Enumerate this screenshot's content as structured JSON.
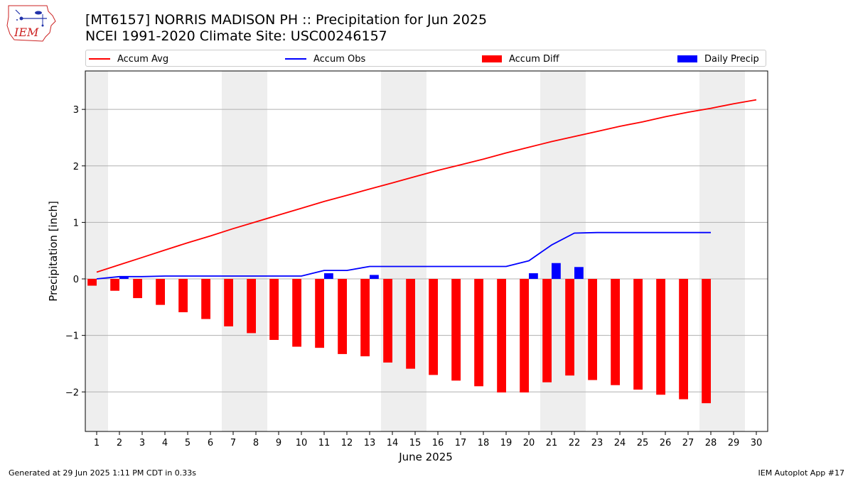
{
  "header": {
    "title": "[MT6157] NORRIS MADISON PH :: Precipitation for Jun 2025",
    "subtitle": "NCEI 1991-2020 Climate Site: USC00246157",
    "logo_text": "IEM"
  },
  "legend": {
    "position": "top",
    "items": [
      {
        "label": "Accum Avg",
        "type": "line",
        "color": "#ff0000"
      },
      {
        "label": "Accum Obs",
        "type": "line",
        "color": "#0000ff"
      },
      {
        "label": "Accum Diff",
        "type": "bar",
        "color": "#ff0000"
      },
      {
        "label": "Daily Precip",
        "type": "bar",
        "color": "#0000ff"
      }
    ]
  },
  "footer": {
    "generated": "Generated at 29 Jun 2025 1:11 PM CDT in 0.33s",
    "app": "IEM Autoplot App #17"
  },
  "colors": {
    "avg": "#ff0000",
    "obs": "#0000ff",
    "diff": "#ff0000",
    "daily": "#0000ff",
    "weekend": "#eeeeee",
    "grid": "#b0b0b0"
  },
  "chart_data": {
    "type": "bar",
    "xlabel": "June 2025",
    "ylabel": "Precipitation [inch]",
    "xlim": [
      0.5,
      30.5
    ],
    "ylim": [
      -2.7,
      3.68
    ],
    "yticks": [
      -2,
      -1,
      0,
      1,
      2,
      3
    ],
    "ytick_labels": [
      "−2",
      "−1",
      "0",
      "1",
      "2",
      "3"
    ],
    "grid": "horizontal",
    "days": [
      1,
      2,
      3,
      4,
      5,
      6,
      7,
      8,
      9,
      10,
      11,
      12,
      13,
      14,
      15,
      16,
      17,
      18,
      19,
      20,
      21,
      22,
      23,
      24,
      25,
      26,
      27,
      28,
      29,
      30
    ],
    "weekend_days": [
      1,
      7,
      8,
      14,
      15,
      21,
      22,
      28,
      29
    ],
    "series": [
      {
        "name": "Accum Avg",
        "type": "line",
        "x": [
          1,
          2,
          3,
          4,
          5,
          6,
          7,
          8,
          9,
          10,
          11,
          12,
          13,
          14,
          15,
          16,
          17,
          18,
          19,
          20,
          21,
          22,
          23,
          24,
          25,
          26,
          27,
          28,
          29,
          30
        ],
        "values": [
          0.12,
          0.25,
          0.38,
          0.51,
          0.64,
          0.76,
          0.89,
          1.01,
          1.13,
          1.25,
          1.37,
          1.48,
          1.59,
          1.7,
          1.81,
          1.92,
          2.02,
          2.12,
          2.23,
          2.33,
          2.43,
          2.52,
          2.61,
          2.7,
          2.78,
          2.87,
          2.95,
          3.02,
          3.1,
          3.17
        ]
      },
      {
        "name": "Accum Obs",
        "type": "line",
        "x": [
          1,
          2,
          3,
          4,
          5,
          6,
          7,
          8,
          9,
          10,
          11,
          12,
          13,
          14,
          15,
          16,
          17,
          18,
          19,
          20,
          21,
          22,
          23,
          24,
          25,
          26,
          27,
          28
        ],
        "values": [
          0.0,
          0.04,
          0.04,
          0.05,
          0.05,
          0.05,
          0.05,
          0.05,
          0.05,
          0.05,
          0.15,
          0.15,
          0.22,
          0.22,
          0.22,
          0.22,
          0.22,
          0.22,
          0.22,
          0.32,
          0.6,
          0.81,
          0.82,
          0.82,
          0.82,
          0.82,
          0.82,
          0.82
        ]
      },
      {
        "name": "Accum Diff",
        "type": "bar",
        "x": [
          1,
          2,
          3,
          4,
          5,
          6,
          7,
          8,
          9,
          10,
          11,
          12,
          13,
          14,
          15,
          16,
          17,
          18,
          19,
          20,
          21,
          22,
          23,
          24,
          25,
          26,
          27,
          28
        ],
        "values": [
          -0.12,
          -0.21,
          -0.34,
          -0.46,
          -0.59,
          -0.71,
          -0.84,
          -0.96,
          -1.08,
          -1.2,
          -1.22,
          -1.33,
          -1.37,
          -1.48,
          -1.59,
          -1.7,
          -1.8,
          -1.9,
          -2.01,
          -2.01,
          -1.83,
          -1.71,
          -1.79,
          -1.88,
          -1.96,
          -2.05,
          -2.13,
          -2.2
        ]
      },
      {
        "name": "Daily Precip",
        "type": "bar",
        "x": [
          2,
          11,
          13,
          20,
          21,
          22
        ],
        "values": [
          0.04,
          0.1,
          0.07,
          0.1,
          0.28,
          0.21
        ]
      }
    ]
  }
}
